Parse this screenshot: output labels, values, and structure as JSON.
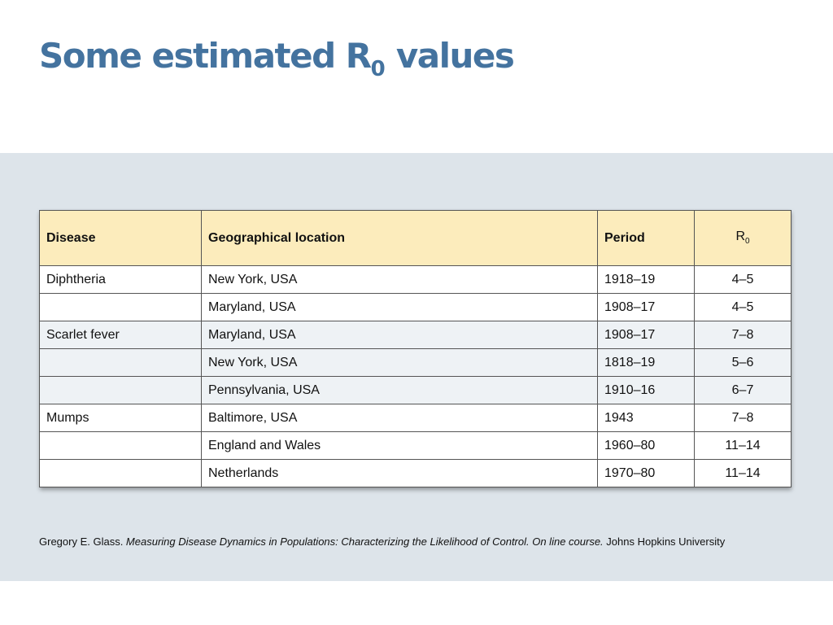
{
  "title": {
    "main": "Some estimated R",
    "subscript": "0",
    "suffix": " values"
  },
  "table": {
    "headers": {
      "disease": "Disease",
      "location": "Geographical location",
      "period": "Period",
      "r0_base": "R",
      "r0_sub": "0"
    },
    "rows": [
      {
        "disease": "Diphtheria",
        "location": "New York, USA",
        "period": "1918–19",
        "r0": "4–5"
      },
      {
        "disease": "",
        "location": "Maryland, USA",
        "period": "1908–17",
        "r0": "4–5"
      },
      {
        "disease": "Scarlet fever",
        "location": "Maryland, USA",
        "period": "1908–17",
        "r0": "7–8"
      },
      {
        "disease": "",
        "location": "New York, USA",
        "period": "1818–19",
        "r0": "5–6"
      },
      {
        "disease": "",
        "location": "Pennsylvania, USA",
        "period": "1910–16",
        "r0": "6–7"
      },
      {
        "disease": "Mumps",
        "location": "Baltimore, USA",
        "period": "1943",
        "r0": "7–8"
      },
      {
        "disease": "",
        "location": "England and Wales",
        "period": "1960–80",
        "r0": "11–14"
      },
      {
        "disease": "",
        "location": "Netherlands",
        "period": "1970–80",
        "r0": "11–14"
      }
    ]
  },
  "citation": {
    "author": "Gregory E. Glass. ",
    "work": "Measuring Disease Dynamics in Populations: Characterizing the Likelihood of Control. On line course.",
    "publisher": " Johns Hopkins University"
  },
  "colors": {
    "title": "#44739f",
    "band": "#dde4ea",
    "header_fill": "#fcecbc",
    "row_alt_fill": "#eef2f5"
  }
}
